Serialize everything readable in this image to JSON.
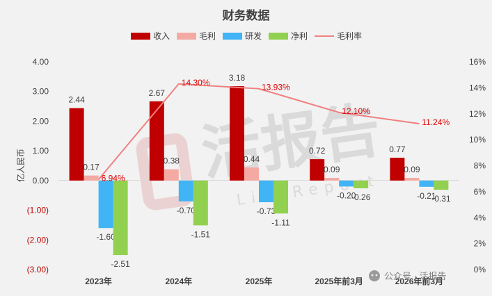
{
  "chart_data": {
    "type": "bar",
    "title": "财务数据",
    "ylabel": "亿人民币",
    "categories": [
      "2023年",
      "2024年",
      "2025年",
      "2025年前3月",
      "2026年前3月"
    ],
    "series": [
      {
        "name": "收入",
        "type": "bar",
        "color": "#c00000",
        "values": [
          2.44,
          2.67,
          3.18,
          0.72,
          0.77
        ],
        "labels": [
          "2.44",
          "2.67",
          "3.18",
          "0.72",
          "0.77"
        ]
      },
      {
        "name": "毛利",
        "type": "bar",
        "color": "#f4aaa3",
        "values": [
          0.17,
          0.38,
          0.44,
          0.09,
          0.09
        ],
        "labels": [
          "0.17",
          "0.38",
          "0.44",
          "0.09",
          "0.09"
        ]
      },
      {
        "name": "研发",
        "type": "bar",
        "color": "#41b4f5",
        "values": [
          -1.6,
          -0.7,
          -0.73,
          -0.2,
          -0.21
        ],
        "labels": [
          "-1.60",
          "-0.70",
          "-0.73",
          "-0.20",
          "-0.21"
        ]
      },
      {
        "name": "净利",
        "type": "bar",
        "color": "#92d050",
        "values": [
          -2.51,
          -1.51,
          -1.11,
          -0.26,
          -0.31
        ],
        "labels": [
          "-2.51",
          "-1.51",
          "-1.11",
          "-0.26",
          "-0.31"
        ]
      },
      {
        "name": "毛利率",
        "type": "line",
        "axis": "right",
        "color": "#f08080",
        "values": [
          6.94,
          14.3,
          13.93,
          12.1,
          11.24
        ],
        "labels": [
          "6.94%",
          "14.30%",
          "13.93%",
          "12.10%",
          "11.24%"
        ]
      }
    ],
    "ylim": [
      -3,
      4
    ],
    "yticks": [
      "4.00",
      "3.00",
      "2.00",
      "1.00",
      "0.00",
      "(1.00)",
      "(2.00)",
      "(3.00)"
    ],
    "y2lim": [
      0,
      16
    ],
    "y2ticks": [
      "16%",
      "14%",
      "12%",
      "10%",
      "8%",
      "6%",
      "4%",
      "2%",
      "0%"
    ],
    "legend_position": "top",
    "grid": false
  },
  "watermark": {
    "logo_text": "活报告",
    "logo_subtext": "LiveReport",
    "wechat_text": "公众号 · 活报告"
  }
}
